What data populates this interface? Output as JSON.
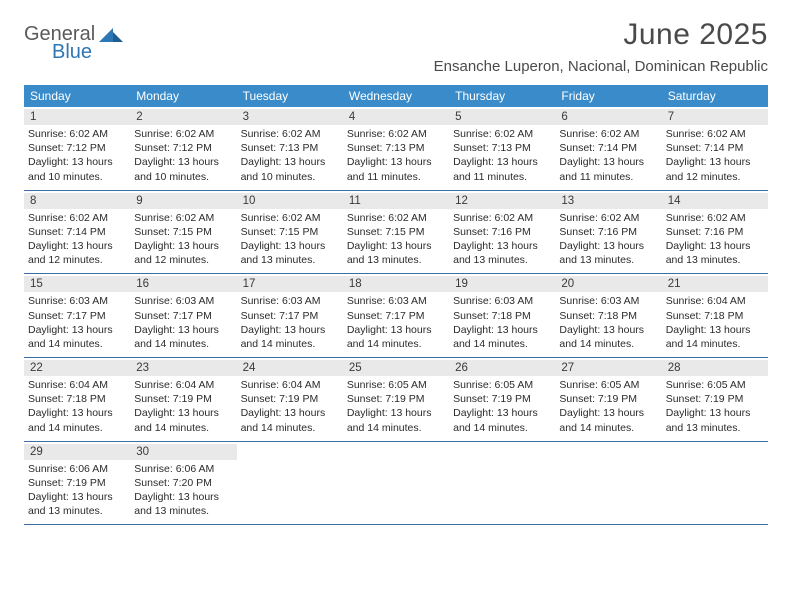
{
  "brand": {
    "name_top": "General",
    "name_bottom": "Blue",
    "text_color_top": "#5a5a5a",
    "text_color_bottom": "#2d77b5",
    "mark_color": "#2d77b5"
  },
  "header": {
    "month_title": "June 2025",
    "location": "Ensanche Luperon, Nacional, Dominican Republic",
    "title_color": "#4a4a4a",
    "title_fontsize": 30,
    "location_fontsize": 15
  },
  "calendar": {
    "weekday_bg": "#3a8bc9",
    "weekday_fg": "#ffffff",
    "daynum_bg": "#e9e9e9",
    "week_border": "#3a6fa5",
    "text_color": "#2b2b2b",
    "weekdays": [
      "Sunday",
      "Monday",
      "Tuesday",
      "Wednesday",
      "Thursday",
      "Friday",
      "Saturday"
    ],
    "weeks": [
      [
        {
          "n": "1",
          "sr": "Sunrise: 6:02 AM",
          "ss": "Sunset: 7:12 PM",
          "d1": "Daylight: 13 hours",
          "d2": "and 10 minutes."
        },
        {
          "n": "2",
          "sr": "Sunrise: 6:02 AM",
          "ss": "Sunset: 7:12 PM",
          "d1": "Daylight: 13 hours",
          "d2": "and 10 minutes."
        },
        {
          "n": "3",
          "sr": "Sunrise: 6:02 AM",
          "ss": "Sunset: 7:13 PM",
          "d1": "Daylight: 13 hours",
          "d2": "and 10 minutes."
        },
        {
          "n": "4",
          "sr": "Sunrise: 6:02 AM",
          "ss": "Sunset: 7:13 PM",
          "d1": "Daylight: 13 hours",
          "d2": "and 11 minutes."
        },
        {
          "n": "5",
          "sr": "Sunrise: 6:02 AM",
          "ss": "Sunset: 7:13 PM",
          "d1": "Daylight: 13 hours",
          "d2": "and 11 minutes."
        },
        {
          "n": "6",
          "sr": "Sunrise: 6:02 AM",
          "ss": "Sunset: 7:14 PM",
          "d1": "Daylight: 13 hours",
          "d2": "and 11 minutes."
        },
        {
          "n": "7",
          "sr": "Sunrise: 6:02 AM",
          "ss": "Sunset: 7:14 PM",
          "d1": "Daylight: 13 hours",
          "d2": "and 12 minutes."
        }
      ],
      [
        {
          "n": "8",
          "sr": "Sunrise: 6:02 AM",
          "ss": "Sunset: 7:14 PM",
          "d1": "Daylight: 13 hours",
          "d2": "and 12 minutes."
        },
        {
          "n": "9",
          "sr": "Sunrise: 6:02 AM",
          "ss": "Sunset: 7:15 PM",
          "d1": "Daylight: 13 hours",
          "d2": "and 12 minutes."
        },
        {
          "n": "10",
          "sr": "Sunrise: 6:02 AM",
          "ss": "Sunset: 7:15 PM",
          "d1": "Daylight: 13 hours",
          "d2": "and 13 minutes."
        },
        {
          "n": "11",
          "sr": "Sunrise: 6:02 AM",
          "ss": "Sunset: 7:15 PM",
          "d1": "Daylight: 13 hours",
          "d2": "and 13 minutes."
        },
        {
          "n": "12",
          "sr": "Sunrise: 6:02 AM",
          "ss": "Sunset: 7:16 PM",
          "d1": "Daylight: 13 hours",
          "d2": "and 13 minutes."
        },
        {
          "n": "13",
          "sr": "Sunrise: 6:02 AM",
          "ss": "Sunset: 7:16 PM",
          "d1": "Daylight: 13 hours",
          "d2": "and 13 minutes."
        },
        {
          "n": "14",
          "sr": "Sunrise: 6:02 AM",
          "ss": "Sunset: 7:16 PM",
          "d1": "Daylight: 13 hours",
          "d2": "and 13 minutes."
        }
      ],
      [
        {
          "n": "15",
          "sr": "Sunrise: 6:03 AM",
          "ss": "Sunset: 7:17 PM",
          "d1": "Daylight: 13 hours",
          "d2": "and 14 minutes."
        },
        {
          "n": "16",
          "sr": "Sunrise: 6:03 AM",
          "ss": "Sunset: 7:17 PM",
          "d1": "Daylight: 13 hours",
          "d2": "and 14 minutes."
        },
        {
          "n": "17",
          "sr": "Sunrise: 6:03 AM",
          "ss": "Sunset: 7:17 PM",
          "d1": "Daylight: 13 hours",
          "d2": "and 14 minutes."
        },
        {
          "n": "18",
          "sr": "Sunrise: 6:03 AM",
          "ss": "Sunset: 7:17 PM",
          "d1": "Daylight: 13 hours",
          "d2": "and 14 minutes."
        },
        {
          "n": "19",
          "sr": "Sunrise: 6:03 AM",
          "ss": "Sunset: 7:18 PM",
          "d1": "Daylight: 13 hours",
          "d2": "and 14 minutes."
        },
        {
          "n": "20",
          "sr": "Sunrise: 6:03 AM",
          "ss": "Sunset: 7:18 PM",
          "d1": "Daylight: 13 hours",
          "d2": "and 14 minutes."
        },
        {
          "n": "21",
          "sr": "Sunrise: 6:04 AM",
          "ss": "Sunset: 7:18 PM",
          "d1": "Daylight: 13 hours",
          "d2": "and 14 minutes."
        }
      ],
      [
        {
          "n": "22",
          "sr": "Sunrise: 6:04 AM",
          "ss": "Sunset: 7:18 PM",
          "d1": "Daylight: 13 hours",
          "d2": "and 14 minutes."
        },
        {
          "n": "23",
          "sr": "Sunrise: 6:04 AM",
          "ss": "Sunset: 7:19 PM",
          "d1": "Daylight: 13 hours",
          "d2": "and 14 minutes."
        },
        {
          "n": "24",
          "sr": "Sunrise: 6:04 AM",
          "ss": "Sunset: 7:19 PM",
          "d1": "Daylight: 13 hours",
          "d2": "and 14 minutes."
        },
        {
          "n": "25",
          "sr": "Sunrise: 6:05 AM",
          "ss": "Sunset: 7:19 PM",
          "d1": "Daylight: 13 hours",
          "d2": "and 14 minutes."
        },
        {
          "n": "26",
          "sr": "Sunrise: 6:05 AM",
          "ss": "Sunset: 7:19 PM",
          "d1": "Daylight: 13 hours",
          "d2": "and 14 minutes."
        },
        {
          "n": "27",
          "sr": "Sunrise: 6:05 AM",
          "ss": "Sunset: 7:19 PM",
          "d1": "Daylight: 13 hours",
          "d2": "and 14 minutes."
        },
        {
          "n": "28",
          "sr": "Sunrise: 6:05 AM",
          "ss": "Sunset: 7:19 PM",
          "d1": "Daylight: 13 hours",
          "d2": "and 13 minutes."
        }
      ],
      [
        {
          "n": "29",
          "sr": "Sunrise: 6:06 AM",
          "ss": "Sunset: 7:19 PM",
          "d1": "Daylight: 13 hours",
          "d2": "and 13 minutes."
        },
        {
          "n": "30",
          "sr": "Sunrise: 6:06 AM",
          "ss": "Sunset: 7:20 PM",
          "d1": "Daylight: 13 hours",
          "d2": "and 13 minutes."
        },
        {},
        {},
        {},
        {},
        {}
      ]
    ]
  }
}
